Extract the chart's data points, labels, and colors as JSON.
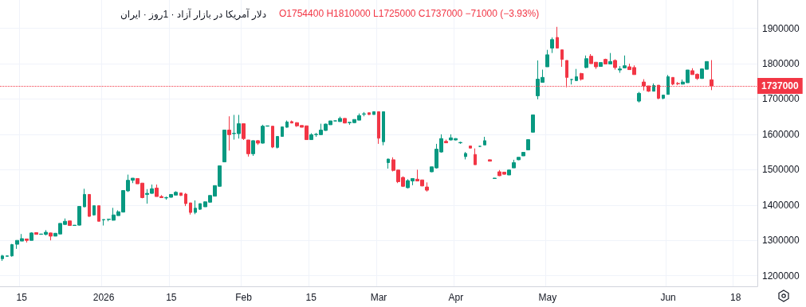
{
  "chart_data": {
    "type": "candlestick",
    "title": "دلار آمریکا در بازار آزاد · 1روز · ایران",
    "subtitle": "O1754400 H1810000 L1725000 C1737000 −71000 (−3.93%)",
    "categories": [
      null,
      null,
      null,
      null,
      "15",
      null,
      null,
      null,
      null,
      null,
      null,
      null,
      null,
      null,
      null,
      null,
      null,
      null,
      null,
      null,
      null,
      "2026",
      null,
      null,
      null,
      null,
      null,
      null,
      null,
      null,
      null,
      null,
      null,
      null,
      null,
      "15",
      null,
      null,
      null,
      null,
      null,
      null,
      null,
      null,
      null,
      null,
      null,
      null,
      null,
      null,
      "Feb",
      null,
      null,
      null,
      null,
      null,
      null,
      null,
      null,
      null,
      null,
      null,
      null,
      null,
      "15",
      null,
      null,
      null,
      null,
      null,
      null,
      null,
      null,
      null,
      null,
      null,
      null,
      null,
      "Mar",
      null,
      null,
      null,
      null,
      null,
      null,
      null,
      null,
      null,
      null,
      null,
      null,
      null,
      null,
      null,
      "Apr",
      null,
      null,
      null,
      null,
      null,
      null,
      null,
      null,
      null,
      null,
      null,
      null,
      null,
      null,
      null,
      null,
      null,
      null,
      "May",
      null,
      null,
      null,
      null,
      null,
      null,
      null,
      null,
      null,
      null,
      null,
      null,
      null,
      null,
      null,
      null,
      null,
      null,
      null,
      null,
      null,
      null,
      null,
      null,
      "Jun",
      null,
      null,
      null,
      null,
      null,
      null,
      null,
      null,
      null,
      null,
      null,
      null,
      null,
      "18",
      null,
      null,
      null,
      null
    ],
    "ohlc": [
      [
        1248000,
        1259000,
        1242000,
        1256000
      ],
      [
        1255000,
        1257000,
        1255000,
        1256000
      ],
      [
        1256000,
        1290000,
        1254000,
        1288000
      ],
      [
        1289000,
        1300000,
        1276000,
        1300000
      ],
      [
        1298000,
        1318000,
        1298000,
        1305000
      ],
      [
        1304000,
        1304000,
        1294000,
        1300000
      ],
      [
        1300000,
        1323000,
        1300000,
        1321000
      ],
      [
        1322000,
        1322000,
        1317000,
        1317000
      ],
      [
        1317000,
        1318000,
        1317000,
        1318000
      ],
      [
        1317000,
        1329000,
        1314000,
        1323000
      ],
      [
        1321000,
        1322000,
        1300000,
        1312000
      ],
      [
        1312000,
        1321000,
        1312000,
        1320000
      ],
      [
        1318000,
        1348000,
        1318000,
        1348000
      ],
      [
        1345000,
        1362000,
        1344000,
        1354000
      ],
      [
        1355000,
        1355000,
        1341000,
        1342000
      ],
      [
        1342000,
        1343000,
        1342000,
        1343000
      ],
      [
        1343000,
        1397000,
        1342000,
        1396000
      ],
      [
        1395000,
        1446000,
        1394000,
        1430000
      ],
      [
        1430000,
        1430000,
        1367000,
        1368000
      ],
      [
        1372000,
        1398000,
        1370000,
        1398000
      ],
      [
        1398000,
        1398000,
        1354000,
        1354000
      ],
      [
        1358000,
        1359000,
        1342000,
        1359000
      ],
      [
        1359000,
        1360000,
        1354000,
        1360000
      ],
      [
        1357000,
        1392000,
        1356000,
        1372000
      ],
      [
        1370000,
        1385000,
        1370000,
        1381000
      ],
      [
        1380000,
        1441000,
        1379000,
        1441000
      ],
      [
        1440000,
        1486000,
        1437000,
        1470000
      ],
      [
        1470000,
        1476000,
        1462000,
        1476000
      ],
      [
        1475000,
        1476000,
        1460000,
        1460000
      ],
      [
        1462000,
        1462000,
        1419000,
        1421000
      ],
      [
        1430000,
        1445000,
        1404000,
        1433000
      ],
      [
        1433000,
        1458000,
        1432000,
        1446000
      ],
      [
        1448000,
        1458000,
        1424000,
        1424000
      ],
      [
        1424000,
        1428000,
        1420000,
        1421000
      ],
      [
        1420000,
        1424000,
        1415000,
        1421000
      ],
      [
        1422000,
        1431000,
        1421000,
        1430000
      ],
      [
        1428000,
        1439000,
        1428000,
        1436000
      ],
      [
        1434000,
        1434000,
        1426000,
        1427000
      ],
      [
        1431000,
        1434000,
        1397000,
        1404000
      ],
      [
        1406000,
        1406000,
        1373000,
        1379000
      ],
      [
        1379000,
        1413000,
        1374000,
        1391000
      ],
      [
        1388000,
        1404000,
        1386000,
        1404000
      ],
      [
        1395000,
        1410000,
        1395000,
        1409000
      ],
      [
        1408000,
        1427000,
        1407000,
        1427000
      ],
      [
        1425000,
        1455000,
        1425000,
        1455000
      ],
      [
        1453000,
        1511000,
        1452000,
        1511000
      ],
      [
        1522000,
        1612000,
        1522000,
        1612000
      ],
      [
        1612000,
        1651000,
        1554000,
        1599000
      ],
      [
        1602000,
        1655000,
        1585000,
        1603000
      ],
      [
        1602000,
        1655000,
        1588000,
        1630000
      ],
      [
        1630000,
        1630000,
        1584000,
        1588000
      ],
      [
        1584000,
        1584000,
        1537000,
        1545000
      ],
      [
        1545000,
        1583000,
        1539000,
        1582000
      ],
      [
        1582000,
        1584000,
        1570000,
        1575000
      ],
      [
        1575000,
        1627000,
        1574000,
        1623000
      ],
      [
        1623000,
        1624000,
        1622000,
        1624000
      ],
      [
        1623000,
        1623000,
        1561000,
        1564000
      ],
      [
        1563000,
        1594000,
        1560000,
        1594000
      ],
      [
        1594000,
        1622000,
        1593000,
        1621000
      ],
      [
        1620000,
        1639000,
        1619000,
        1635000
      ],
      [
        1636000,
        1639000,
        1631000,
        1632000
      ],
      [
        1633000,
        1634000,
        1621000,
        1624000
      ],
      [
        1625000,
        1625000,
        1620000,
        1620000
      ],
      [
        1624000,
        1624000,
        1585000,
        1585000
      ],
      [
        1585000,
        1603000,
        1585000,
        1599000
      ],
      [
        1599000,
        1604000,
        1593000,
        1600000
      ],
      [
        1599000,
        1630000,
        1598000,
        1612000
      ],
      [
        1611000,
        1630000,
        1610000,
        1629000
      ],
      [
        1627000,
        1638000,
        1627000,
        1638000
      ],
      [
        1638000,
        1639000,
        1637000,
        1638000
      ],
      [
        1636000,
        1650000,
        1636000,
        1645000
      ],
      [
        1645000,
        1646000,
        1631000,
        1632000
      ],
      [
        1633000,
        1634000,
        1627000,
        1634000
      ],
      [
        1633000,
        1642000,
        1632000,
        1642000
      ],
      [
        1640000,
        1659000,
        1640000,
        1653000
      ],
      [
        1657000,
        1663000,
        1651000,
        1658000
      ],
      [
        1661000,
        1661000,
        1655000,
        1656000
      ],
      [
        1656000,
        1664000,
        1656000,
        1664000
      ],
      [
        1664000,
        1664000,
        1573000,
        1589000
      ],
      [
        1579000,
        1664000,
        1569000,
        1664000
      ],
      [
        1520000,
        1531000,
        1503000,
        1530000
      ],
      [
        1528000,
        1535000,
        1495000,
        1498000
      ],
      [
        1499000,
        1499000,
        1462000,
        1466000
      ],
      [
        1478000,
        1481000,
        1451000,
        1453000
      ],
      [
        1449000,
        1473000,
        1447000,
        1469000
      ],
      [
        1468000,
        1475000,
        1456000,
        1475000
      ],
      [
        1473000,
        1500000,
        1468000,
        1468000
      ],
      [
        1471000,
        1471000,
        1453000,
        1454000
      ],
      [
        1451000,
        1464000,
        1438000,
        1442000
      ],
      [
        1494000,
        1508000,
        1493000,
        1508000
      ],
      [
        1505000,
        1573000,
        1503000,
        1558000
      ],
      [
        1550000,
        1600000,
        1548000,
        1588000
      ],
      [
        1580000,
        1585000,
        1576000,
        1576000
      ],
      [
        1584000,
        1600000,
        1583000,
        1590000
      ],
      [
        1584000,
        1589000,
        1583000,
        1588000
      ],
      [
        1576000,
        1579000,
        1573000,
        1577000
      ],
      [
        1537000,
        1550000,
        1529000,
        1546000
      ],
      [
        1567000,
        1567000,
        1561000,
        1561000
      ],
      [
        1543000,
        1560000,
        1514000,
        1514000
      ],
      [
        1566000,
        1567000,
        1565000,
        1566000
      ],
      [
        1570000,
        1593000,
        1570000,
        1582000
      ],
      [
        1528000,
        1529000,
        1524000,
        1524000
      ],
      [
        1475000,
        1477000,
        1474000,
        1476000
      ],
      [
        1494000,
        1499000,
        1482000,
        1483000
      ],
      [
        1493000,
        1493000,
        1486000,
        1487000
      ],
      [
        1485000,
        1500000,
        1485000,
        1499000
      ],
      [
        1505000,
        1528000,
        1505000,
        1520000
      ],
      [
        1528000,
        1535000,
        1527000,
        1535000
      ],
      [
        1539000,
        1549000,
        1539000,
        1549000
      ],
      [
        1556000,
        1586000,
        1556000,
        1585000
      ],
      [
        1606000,
        1656000,
        1606000,
        1655000
      ],
      [
        1709000,
        1809000,
        1699000,
        1756000
      ],
      [
        1747000,
        1783000,
        1747000,
        1761000
      ],
      [
        1791000,
        1839000,
        1791000,
        1825000
      ],
      [
        1844000,
        1874000,
        1830000,
        1868000
      ],
      [
        1874000,
        1904000,
        1844000,
        1844000
      ],
      [
        1839000,
        1839000,
        1791000,
        1812000
      ],
      [
        1809000,
        1809000,
        1733000,
        1761000
      ],
      [
        1755000,
        1756000,
        1741000,
        1755000
      ],
      [
        1752000,
        1785000,
        1751000,
        1763000
      ],
      [
        1772000,
        1774000,
        1752000,
        1756000
      ],
      [
        1789000,
        1823000,
        1787000,
        1814000
      ],
      [
        1821000,
        1827000,
        1800000,
        1800000
      ],
      [
        1804000,
        1804000,
        1785000,
        1791000
      ],
      [
        1792000,
        1803000,
        1792000,
        1803000
      ],
      [
        1812000,
        1814000,
        1799000,
        1799000
      ],
      [
        1799000,
        1830000,
        1799000,
        1806000
      ],
      [
        1809000,
        1812000,
        1783000,
        1789000
      ],
      [
        1782000,
        1793000,
        1774000,
        1785000
      ],
      [
        1788000,
        1823000,
        1787000,
        1794000
      ],
      [
        1791000,
        1800000,
        1783000,
        1783000
      ],
      [
        1789000,
        1795000,
        1769000,
        1769000
      ],
      [
        1694000,
        1720000,
        1690000,
        1716000
      ],
      [
        1748000,
        1756000,
        1724000,
        1737000
      ],
      [
        1737000,
        1737000,
        1720000,
        1722000
      ],
      [
        1722000,
        1744000,
        1722000,
        1738000
      ],
      [
        1739000,
        1739000,
        1699000,
        1702000
      ],
      [
        1702000,
        1711000,
        1699000,
        1711000
      ],
      [
        1713000,
        1768000,
        1713000,
        1763000
      ],
      [
        1761000,
        1761000,
        1739000,
        1742000
      ],
      [
        1744000,
        1748000,
        1739000,
        1743000
      ],
      [
        1742000,
        1755000,
        1741000,
        1748000
      ],
      [
        1746000,
        1782000,
        1746000,
        1782000
      ],
      [
        1780000,
        1787000,
        1769000,
        1769000
      ],
      [
        1770000,
        1772000,
        1754000,
        1758000
      ],
      [
        1758000,
        1786000,
        1757000,
        1785000
      ],
      [
        1784000,
        1806000,
        1784000,
        1806000
      ],
      [
        1754400,
        1810000,
        1725000,
        1737000
      ],
      null,
      null,
      null,
      null,
      null,
      null,
      null,
      null,
      null
    ],
    "colors": [
      "#089981",
      "#089981",
      "#089981",
      "#089981",
      "#089981",
      "#f23645",
      "#089981",
      "#f23645",
      "#089981",
      "#089981",
      "#f23645",
      "#089981",
      "#089981",
      "#089981",
      "#f23645",
      "#089981",
      "#089981",
      "#089981",
      "#f23645",
      "#089981",
      "#f23645",
      "#089981",
      "#089981",
      "#089981",
      "#089981",
      "#089981",
      "#089981",
      "#089981",
      "#f23645",
      "#f23645",
      "#089981",
      "#089981",
      "#f23645",
      "#f23645",
      "#089981",
      "#089981",
      "#089981",
      "#f23645",
      "#f23645",
      "#f23645",
      "#089981",
      "#089981",
      "#089981",
      "#089981",
      "#089981",
      "#089981",
      "#089981",
      "#f23645",
      "#089981",
      "#089981",
      "#f23645",
      "#f23645",
      "#089981",
      "#f23645",
      "#089981",
      "#089981",
      "#f23645",
      "#089981",
      "#089981",
      "#089981",
      "#f23645",
      "#f23645",
      "#f23645",
      "#f23645",
      "#089981",
      "#089981",
      "#089981",
      "#089981",
      "#089981",
      "#089981",
      "#089981",
      "#f23645",
      "#089981",
      "#089981",
      "#089981",
      "#089981",
      "#f23645",
      "#089981",
      "#f23645",
      "#089981",
      "#089981",
      "#f23645",
      "#f23645",
      "#f23645",
      "#089981",
      "#089981",
      "#f23645",
      "#f23645",
      "#f23645",
      "#089981",
      "#089981",
      "#089981",
      "#f23645",
      "#089981",
      "#089981",
      "#089981",
      "#089981",
      "#f23645",
      "#f23645",
      "#089981",
      "#089981",
      "#f23645",
      "#089981",
      "#f23645",
      "#f23645",
      "#089981",
      "#089981",
      "#089981",
      "#089981",
      "#089981",
      "#089981",
      "#089981",
      "#089981",
      "#089981",
      "#089981",
      "#f23645",
      "#f23645",
      "#f23645",
      "#089981",
      "#089981",
      "#f23645",
      "#089981",
      "#f23645",
      "#f23645",
      "#089981",
      "#f23645",
      "#089981",
      "#f23645",
      "#089981",
      "#089981",
      "#f23645",
      "#f23645",
      "#089981",
      "#f23645",
      "#f23645",
      "#089981",
      "#f23645",
      "#089981",
      "#089981",
      "#f23645",
      "#f23645",
      "#089981",
      "#089981",
      "#f23645",
      "#f23645",
      "#089981",
      "#089981",
      "#f23645",
      null,
      null,
      null,
      null,
      null,
      null,
      null,
      null,
      null
    ],
    "ylim": [
      1170000,
      1980000
    ],
    "yticks": [
      1200000,
      1300000,
      1400000,
      1500000,
      1600000,
      1700000,
      1800000,
      1900000
    ],
    "ref_lines": [
      {
        "axis": "y",
        "value": 1737000,
        "label": "1737000",
        "color": "#f23645",
        "line_style": "dotted"
      }
    ],
    "grid": true
  }
}
